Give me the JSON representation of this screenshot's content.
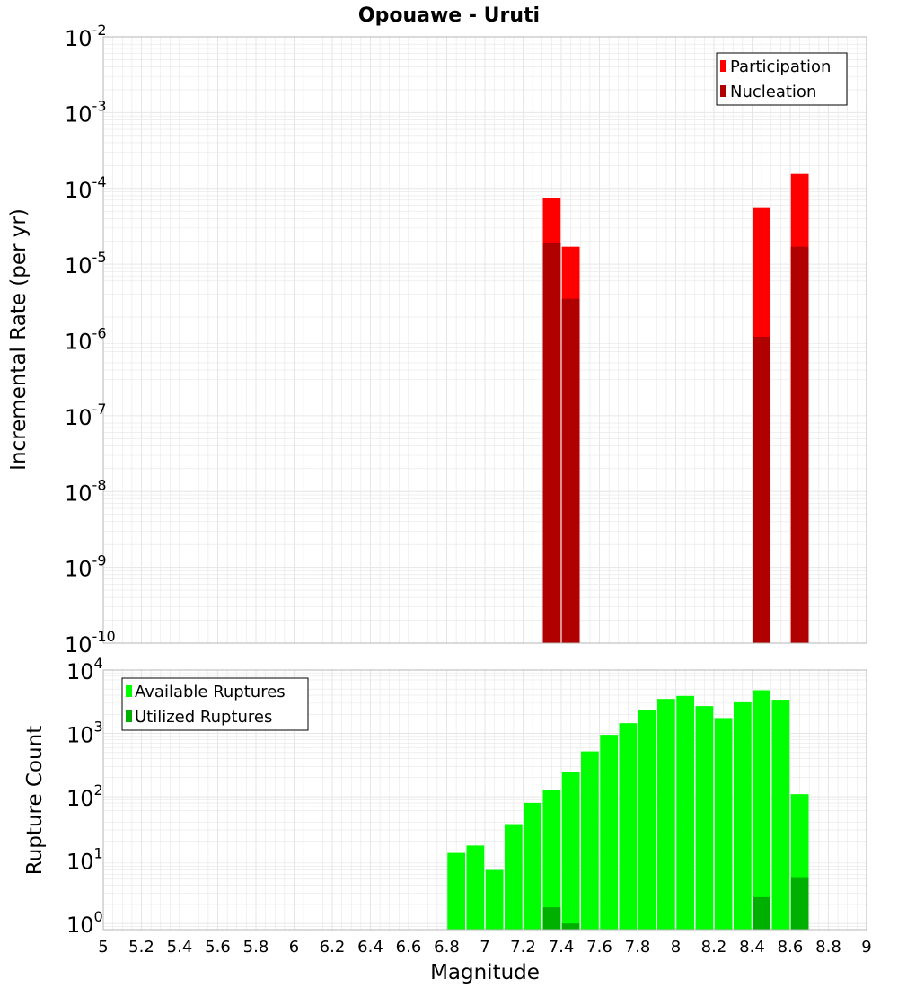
{
  "title": "Opouawe - Uruti",
  "xlabel": "Magnitude",
  "x_ticks": [
    "5",
    "5.2",
    "5.4",
    "5.6",
    "5.8",
    "6",
    "6.2",
    "6.4",
    "6.6",
    "6.8",
    "7",
    "7.2",
    "7.4",
    "7.6",
    "7.8",
    "8",
    "8.2",
    "8.4",
    "8.6",
    "8.8",
    "9"
  ],
  "colors": {
    "participation": "#ff0000",
    "nucleation": "#b00000",
    "available": "#00ff00",
    "utilized": "#00b000",
    "grid": "#e6e6e6",
    "frame": "#b4b4b4"
  },
  "chart_data": [
    {
      "type": "bar",
      "ylabel": "Incremental Rate (per yr)",
      "yscale": "log",
      "ylim": [
        1e-10,
        0.01
      ],
      "y_tick_exponents": [
        "-10",
        "-9",
        "-8",
        "-7",
        "-6",
        "-5",
        "-4",
        "-3",
        "-2"
      ],
      "y_tick_base": "10",
      "legend_position": "top-right",
      "series": [
        {
          "name": "Participation",
          "x": [
            7.35,
            7.45,
            8.45,
            8.65
          ],
          "values": [
            7.5e-05,
            1.7e-05,
            5.5e-05,
            0.000155
          ]
        },
        {
          "name": "Nucleation",
          "x": [
            7.35,
            7.45,
            8.45,
            8.65
          ],
          "values": [
            1.9e-05,
            3.5e-06,
            1.1e-06,
            1.7e-05
          ]
        }
      ]
    },
    {
      "type": "bar",
      "ylabel": "Rupture Count",
      "yscale": "log",
      "ylim": [
        0.8,
        10000
      ],
      "y_tick_exponents": [
        "0",
        "1",
        "2",
        "3",
        "4"
      ],
      "y_tick_base": "10",
      "legend_position": "top-left",
      "series": [
        {
          "name": "Available Ruptures",
          "x": [
            6.85,
            6.95,
            7.05,
            7.15,
            7.25,
            7.35,
            7.45,
            7.55,
            7.65,
            7.75,
            7.85,
            7.95,
            8.05,
            8.15,
            8.25,
            8.35,
            8.45,
            8.55,
            8.65
          ],
          "values": [
            13,
            17,
            7,
            37,
            80,
            130,
            250,
            520,
            950,
            1450,
            2300,
            3500,
            3900,
            2700,
            1750,
            3100,
            4800,
            3400,
            110
          ]
        },
        {
          "name": "Utilized Ruptures",
          "x": [
            7.35,
            7.45,
            8.45,
            8.65
          ],
          "values": [
            1.8,
            1,
            2.6,
            5.4
          ]
        }
      ]
    }
  ]
}
